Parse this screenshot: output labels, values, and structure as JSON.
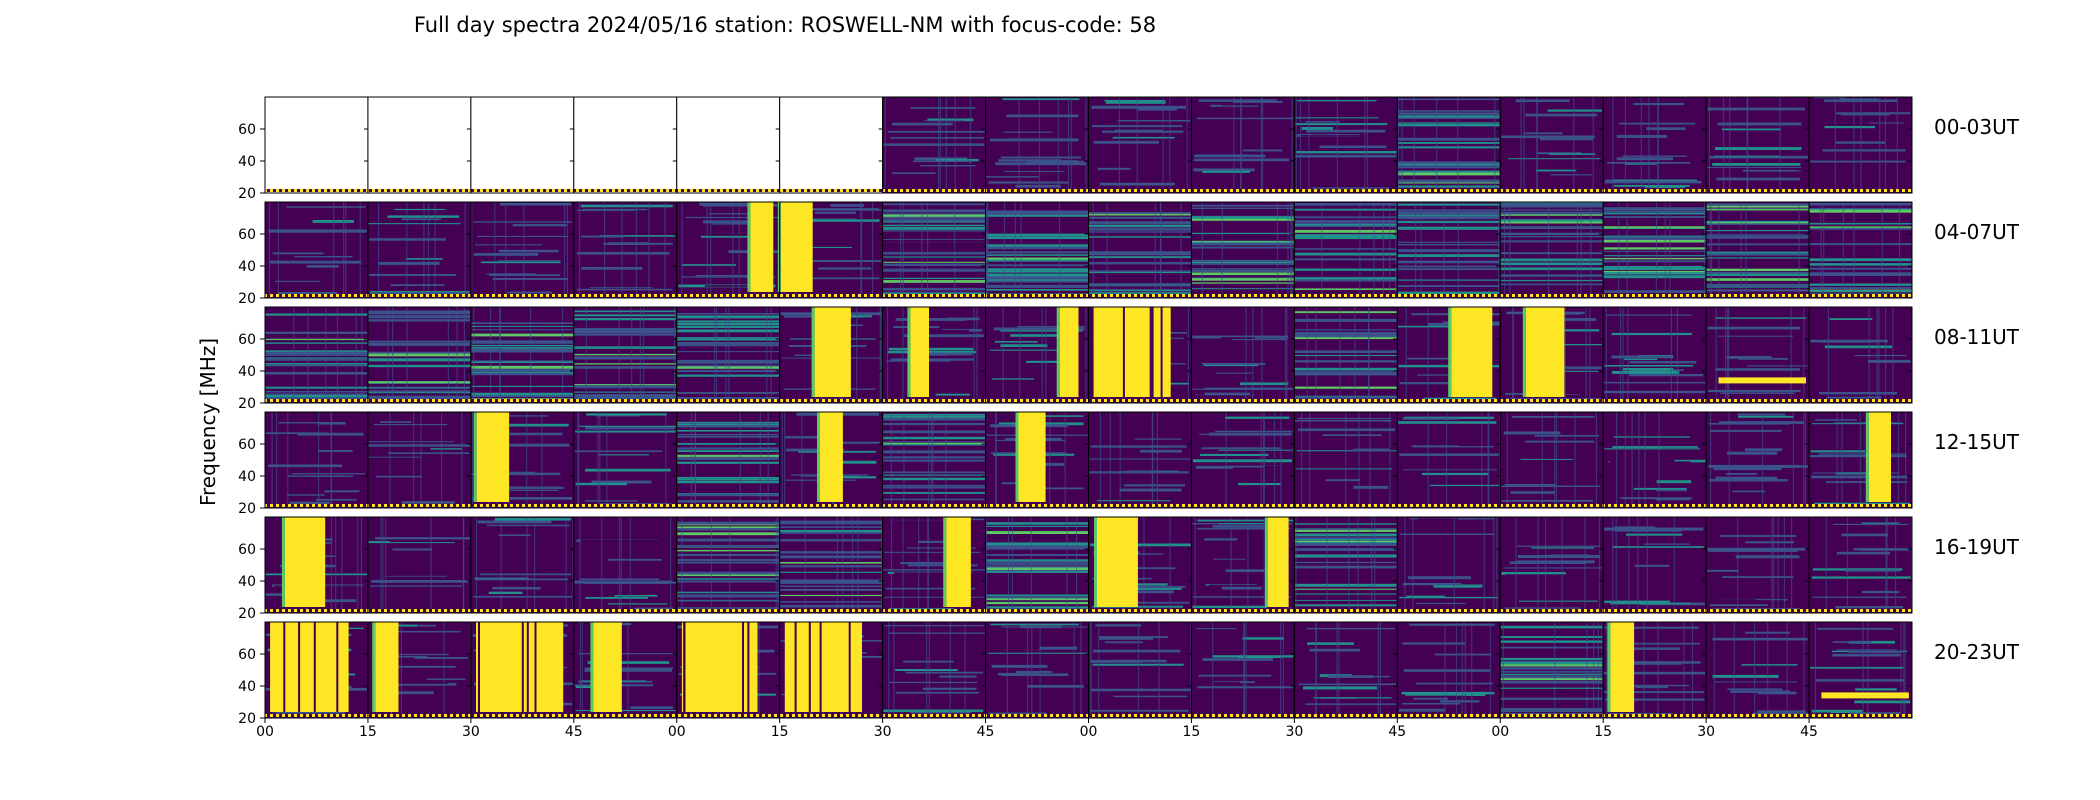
{
  "chart_data": {
    "type": "heatmap",
    "title": "Full day spectra 2024/05/16 station: ROSWELL-NM with focus-code: 58",
    "ylabel": "Frequency [MHz]",
    "ylim": [
      20,
      80
    ],
    "y_ticks": [
      "20",
      "40",
      "60"
    ],
    "x_ticks": [
      "00",
      "15",
      "30",
      "45",
      "00",
      "15",
      "30",
      "45",
      "00",
      "15",
      "30",
      "45",
      "00",
      "15",
      "30",
      "45"
    ],
    "colormap": [
      "#440154",
      "#3b528b",
      "#21918c",
      "#5ec962",
      "#fde725"
    ],
    "rows": [
      {
        "label": "00-03UT",
        "panels": [
          "empty",
          "empty",
          "empty",
          "empty",
          "empty",
          "empty",
          "quiet",
          "quiet",
          "quiet",
          "quiet",
          "quiet",
          "noisy",
          "quiet",
          "quiet",
          "quiet",
          "quiet"
        ]
      },
      {
        "label": "04-07UT",
        "panels": [
          "quiet",
          "quiet",
          "quiet",
          "quiet",
          "burst-partial",
          "burst-partial",
          "noisy",
          "noisy",
          "noisy",
          "noisy",
          "noisy",
          "noisy",
          "noisy",
          "noisy",
          "noisy",
          "noisy"
        ]
      },
      {
        "label": "08-11UT",
        "panels": [
          "noisy",
          "noisy",
          "noisy",
          "noisy",
          "noisy",
          "burst-partial",
          "burst-partial",
          "burst-partial",
          "burst-full",
          "quiet",
          "noisy",
          "burst-partial",
          "burst-partial",
          "quiet",
          "band",
          "quiet"
        ]
      },
      {
        "label": "12-15UT",
        "panels": [
          "quiet",
          "quiet",
          "burst-partial",
          "quiet",
          "noisy",
          "burst-partial",
          "noisy",
          "burst-partial",
          "quiet",
          "quiet",
          "quiet",
          "quiet",
          "quiet",
          "quiet",
          "quiet",
          "burst-partial"
        ]
      },
      {
        "label": "16-19UT",
        "panels": [
          "burst-partial",
          "quiet",
          "quiet",
          "quiet",
          "noisy",
          "noisy",
          "burst-partial",
          "noisy",
          "burst-partial",
          "burst-partial",
          "noisy",
          "quiet",
          "quiet",
          "quiet",
          "quiet",
          "quiet"
        ]
      },
      {
        "label": "20-23UT",
        "panels": [
          "burst-full",
          "burst-partial",
          "burst-full",
          "burst-partial",
          "burst-full",
          "burst-full",
          "quiet",
          "quiet",
          "quiet",
          "quiet",
          "quiet",
          "quiet",
          "noisy",
          "burst-partial",
          "quiet",
          "band"
        ]
      }
    ],
    "grid": false
  }
}
